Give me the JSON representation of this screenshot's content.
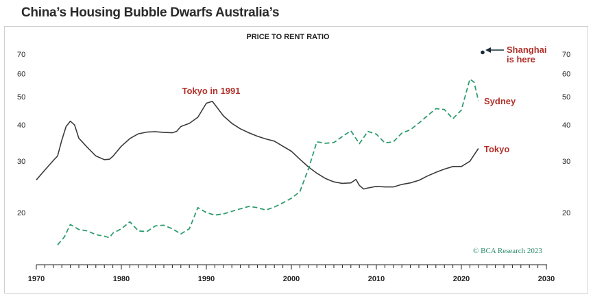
{
  "title": "China’s Housing Bubble Dwarfs Australia’s",
  "colors": {
    "tokyo": "#3a3a3a",
    "sydney": "#2e9c6e",
    "annotation": "#b0312a",
    "credit": "#2a8a6a"
  },
  "chart_data": {
    "type": "line",
    "subtitle": "PRICE TO RENT RATIO",
    "y_scale": "log",
    "ylim": [
      15,
      78
    ],
    "xlim": [
      1970,
      2030
    ],
    "y_ticks": [
      20,
      30,
      40,
      50,
      60,
      70
    ],
    "x_ticks": [
      1970,
      1980,
      1990,
      2000,
      2010,
      2020,
      2030
    ],
    "series": [
      {
        "name": "Tokyo",
        "style": "solid",
        "points": [
          [
            1970,
            25.9
          ],
          [
            1971,
            28
          ],
          [
            1972,
            30.2
          ],
          [
            1972.5,
            31.3
          ],
          [
            1973,
            35.5
          ],
          [
            1973.5,
            39.5
          ],
          [
            1974,
            41.2
          ],
          [
            1974.5,
            40
          ],
          [
            1975,
            36
          ],
          [
            1976,
            33.5
          ],
          [
            1977,
            31.3
          ],
          [
            1978,
            30.4
          ],
          [
            1978.6,
            30.5
          ],
          [
            1979,
            31.2
          ],
          [
            1980,
            33.8
          ],
          [
            1981,
            35.9
          ],
          [
            1982,
            37.3
          ],
          [
            1983,
            37.8
          ],
          [
            1984,
            37.9
          ],
          [
            1985,
            37.7
          ],
          [
            1986,
            37.6
          ],
          [
            1986.5,
            38
          ],
          [
            1987,
            39.5
          ],
          [
            1988,
            40.5
          ],
          [
            1989,
            42.5
          ],
          [
            1990,
            47.5
          ],
          [
            1990.7,
            48.2
          ],
          [
            1991,
            47
          ],
          [
            1992,
            43
          ],
          [
            1993,
            40.5
          ],
          [
            1994,
            38.8
          ],
          [
            1995,
            37.6
          ],
          [
            1996,
            36.6
          ],
          [
            1997,
            35.8
          ],
          [
            1998,
            35.2
          ],
          [
            1999,
            33.8
          ],
          [
            2000,
            32.5
          ],
          [
            2001,
            30.5
          ],
          [
            2002,
            28.7
          ],
          [
            2003,
            27.3
          ],
          [
            2004,
            26.2
          ],
          [
            2005,
            25.5
          ],
          [
            2006,
            25.2
          ],
          [
            2007,
            25.3
          ],
          [
            2007.6,
            26
          ],
          [
            2008,
            24.8
          ],
          [
            2008.5,
            24.1
          ],
          [
            2009,
            24.3
          ],
          [
            2010,
            24.6
          ],
          [
            2011,
            24.5
          ],
          [
            2012,
            24.5
          ],
          [
            2013,
            25
          ],
          [
            2014,
            25.3
          ],
          [
            2015,
            25.8
          ],
          [
            2016,
            26.7
          ],
          [
            2017,
            27.5
          ],
          [
            2018,
            28.2
          ],
          [
            2019,
            28.8
          ],
          [
            2020,
            28.8
          ],
          [
            2021,
            30
          ],
          [
            2022,
            33.2
          ]
        ]
      },
      {
        "name": "Sydney",
        "style": "dashed",
        "points": [
          [
            1972.5,
            15.5
          ],
          [
            1973.3,
            16.5
          ],
          [
            1974,
            18.2
          ],
          [
            1975,
            17.5
          ],
          [
            1976,
            17.3
          ],
          [
            1977,
            16.8
          ],
          [
            1978,
            16.6
          ],
          [
            1978.6,
            16.4
          ],
          [
            1979,
            17
          ],
          [
            1980,
            17.6
          ],
          [
            1981,
            18.6
          ],
          [
            1982,
            17.3
          ],
          [
            1983,
            17.2
          ],
          [
            1984,
            18
          ],
          [
            1985,
            18.1
          ],
          [
            1986,
            17.6
          ],
          [
            1987,
            16.9
          ],
          [
            1988,
            17.6
          ],
          [
            1989,
            20.8
          ],
          [
            1990,
            20
          ],
          [
            1991,
            19.6
          ],
          [
            1992,
            19.8
          ],
          [
            1993,
            20.2
          ],
          [
            1994,
            20.6
          ],
          [
            1995,
            21
          ],
          [
            1996,
            20.8
          ],
          [
            1997,
            20.4
          ],
          [
            1998,
            20.9
          ],
          [
            1999,
            21.6
          ],
          [
            2000,
            22.4
          ],
          [
            2001,
            23.6
          ],
          [
            2002,
            28.2
          ],
          [
            2003,
            35
          ],
          [
            2004,
            34.6
          ],
          [
            2005,
            34.8
          ],
          [
            2006,
            36.5
          ],
          [
            2007,
            38.2
          ],
          [
            2008,
            34.5
          ],
          [
            2009,
            38
          ],
          [
            2010,
            37.2
          ],
          [
            2011,
            34.7
          ],
          [
            2012,
            35
          ],
          [
            2013,
            37.5
          ],
          [
            2014,
            38.5
          ],
          [
            2015,
            40.6
          ],
          [
            2016,
            43
          ],
          [
            2017,
            45.5
          ],
          [
            2018,
            45.2
          ],
          [
            2019,
            42
          ],
          [
            2020,
            45
          ],
          [
            2021,
            57.5
          ],
          [
            2021.5,
            56
          ],
          [
            2022,
            48.5
          ]
        ]
      }
    ],
    "annotations": {
      "tokyo_1991": "Tokyo in 1991",
      "sydney_label": "Sydney",
      "tokyo_label": "Tokyo",
      "shanghai_line1": "Shanghai",
      "shanghai_line2": "is here",
      "shanghai_point": [
        2022.5,
        71
      ]
    },
    "credit": "© BCA Research 2023",
    "grid": false
  }
}
